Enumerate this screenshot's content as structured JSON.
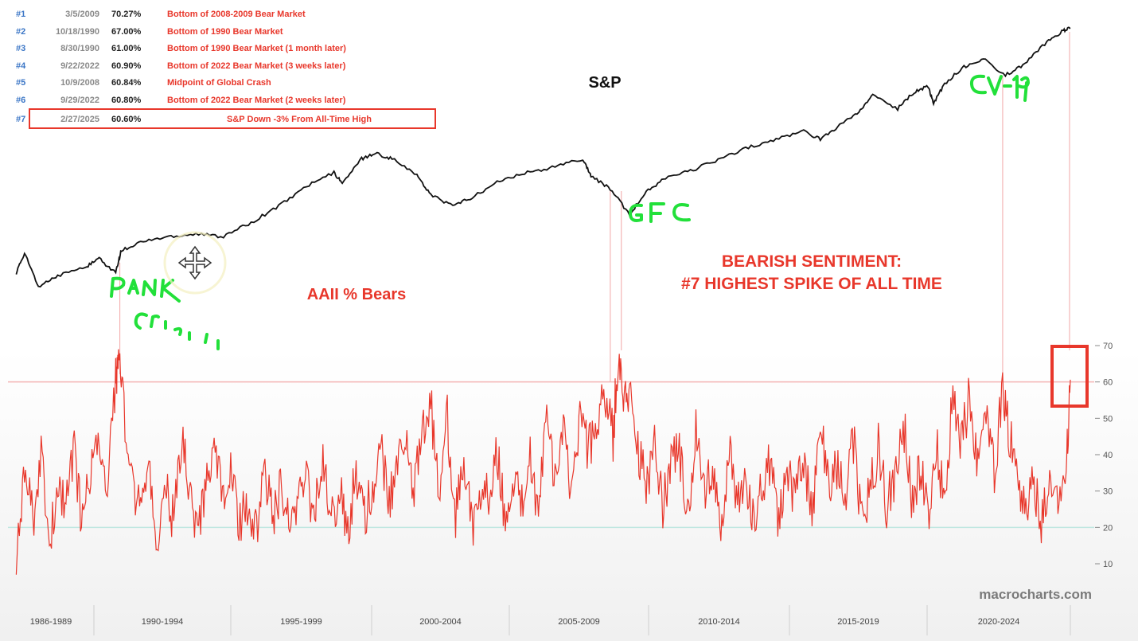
{
  "chart_data": [
    {
      "type": "line",
      "title": "S&P",
      "annotations": [
        "Bank Crisis",
        "GFC",
        "CV-19"
      ],
      "series": [
        {
          "name": "S&P",
          "x": [
            1987.0,
            1987.3,
            1987.8,
            1988.5,
            1989.5,
            1990.0,
            1990.6,
            1990.8,
            1991.5,
            1992.5,
            1993.5,
            1994.5,
            1995.5,
            1996.5,
            1997.5,
            1998.5,
            1998.8,
            1999.5,
            2000.0,
            2000.6,
            2001.5,
            2002.0,
            2002.8,
            2003.5,
            2004.5,
            2005.5,
            2006.5,
            2007.5,
            2007.8,
            2008.5,
            2009.2,
            2009.8,
            2010.5,
            2011.5,
            2012.5,
            2013.5,
            2014.5,
            2015.5,
            2016.1,
            2016.8,
            2017.5,
            2018.0,
            2018.9,
            2019.5,
            2020.0,
            2020.2,
            2020.6,
            2021.3,
            2022.0,
            2022.8,
            2023.5,
            2024.3,
            2024.9,
            2025.15
          ],
          "values_norm": [
            0.45,
            0.52,
            0.4,
            0.44,
            0.47,
            0.5,
            0.45,
            0.53,
            0.56,
            0.58,
            0.59,
            0.58,
            0.63,
            0.69,
            0.76,
            0.81,
            0.77,
            0.86,
            0.88,
            0.86,
            0.8,
            0.73,
            0.69,
            0.72,
            0.78,
            0.81,
            0.83,
            0.86,
            0.8,
            0.75,
            0.66,
            0.74,
            0.79,
            0.82,
            0.86,
            0.9,
            0.93,
            0.96,
            0.93,
            0.98,
            1.03,
            1.09,
            1.04,
            1.1,
            1.12,
            1.06,
            1.13,
            1.19,
            1.22,
            1.16,
            1.2,
            1.28,
            1.32,
            1.33
          ]
        }
      ]
    },
    {
      "type": "line",
      "title": "AAII % Bears",
      "ylim": [
        5,
        72
      ],
      "yticks": [
        "10",
        "20",
        "30",
        "40",
        "50",
        "60",
        "70"
      ],
      "reference_lines": [
        20,
        60
      ],
      "xtick_labels": [
        "1986-1989",
        "1990-1994",
        "1995-1999",
        "2000-2004",
        "2005-2009",
        "2010-2014",
        "2015-2019",
        "2020-2024"
      ],
      "series": [
        {
          "name": "AAII % Bears",
          "x": [
            1987.0,
            1987.3,
            1987.6,
            1987.9,
            1988.2,
            1988.5,
            1988.8,
            1989.1,
            1989.4,
            1989.7,
            1990.0,
            1990.3,
            1990.6,
            1990.7,
            1990.9,
            1991.2,
            1991.5,
            1991.8,
            1992.1,
            1992.4,
            1992.7,
            1993.0,
            1993.3,
            1993.6,
            1993.9,
            1994.2,
            1994.5,
            1994.8,
            1995.1,
            1995.4,
            1995.7,
            1996.0,
            1996.3,
            1996.6,
            1996.9,
            1997.2,
            1997.5,
            1997.8,
            1998.1,
            1998.4,
            1998.7,
            1999.0,
            1999.3,
            1999.6,
            1999.9,
            2000.2,
            2000.5,
            2000.8,
            2001.1,
            2001.4,
            2001.7,
            2002.0,
            2002.3,
            2002.6,
            2002.9,
            2003.2,
            2003.5,
            2003.8,
            2004.1,
            2004.4,
            2004.7,
            2005.0,
            2005.3,
            2005.6,
            2005.9,
            2006.2,
            2006.5,
            2006.8,
            2007.1,
            2007.4,
            2007.7,
            2008.0,
            2008.3,
            2008.6,
            2008.8,
            2009.0,
            2009.2,
            2009.5,
            2009.8,
            2010.1,
            2010.4,
            2010.7,
            2011.0,
            2011.3,
            2011.6,
            2011.9,
            2012.2,
            2012.5,
            2012.8,
            2013.1,
            2013.4,
            2013.7,
            2014.0,
            2014.3,
            2014.6,
            2014.9,
            2015.2,
            2015.5,
            2015.8,
            2016.1,
            2016.4,
            2016.7,
            2017.0,
            2017.3,
            2017.6,
            2017.9,
            2018.2,
            2018.5,
            2018.8,
            2019.1,
            2019.4,
            2019.7,
            2020.0,
            2020.3,
            2020.6,
            2020.9,
            2021.2,
            2021.5,
            2021.8,
            2022.1,
            2022.4,
            2022.7,
            2022.9,
            2023.2,
            2023.5,
            2023.8,
            2024.1,
            2024.4,
            2024.7,
            2025.0,
            2025.15
          ],
          "values": [
            12,
            35,
            22,
            40,
            18,
            30,
            25,
            42,
            20,
            38,
            45,
            30,
            60,
            67,
            52,
            33,
            25,
            40,
            18,
            30,
            22,
            44,
            28,
            20,
            35,
            42,
            26,
            36,
            20,
            28,
            18,
            35,
            24,
            30,
            20,
            26,
            32,
            24,
            40,
            22,
            30,
            20,
            35,
            24,
            30,
            42,
            26,
            38,
            48,
            30,
            45,
            55,
            28,
            50,
            22,
            40,
            18,
            26,
            30,
            42,
            20,
            35,
            28,
            40,
            24,
            50,
            32,
            46,
            30,
            52,
            40,
            50,
            56,
            45,
            70,
            52,
            58,
            42,
            30,
            45,
            26,
            38,
            40,
            24,
            48,
            30,
            36,
            22,
            40,
            26,
            34,
            22,
            30,
            38,
            22,
            34,
            28,
            40,
            22,
            48,
            30,
            36,
            28,
            44,
            22,
            30,
            42,
            26,
            34,
            50,
            28,
            36,
            24,
            42,
            28,
            58,
            44,
            56,
            38,
            52,
            34,
            60,
            48,
            36,
            26,
            32,
            22,
            30,
            24,
            38,
            60.6
          ]
        }
      ]
    }
  ],
  "rankings": [
    {
      "rank": "#1",
      "date": "3/5/2009",
      "value": "70.27%",
      "desc": "Bottom of 2008-2009 Bear Market"
    },
    {
      "rank": "#2",
      "date": "10/18/1990",
      "value": "67.00%",
      "desc": "Bottom of 1990 Bear Market"
    },
    {
      "rank": "#3",
      "date": "8/30/1990",
      "value": "61.00%",
      "desc": "Bottom of 1990 Bear Market (1 month later)"
    },
    {
      "rank": "#4",
      "date": "9/22/2022",
      "value": "60.90%",
      "desc": "Bottom of 2022 Bear Market (3 weeks later)"
    },
    {
      "rank": "#5",
      "date": "10/9/2008",
      "value": "60.84%",
      "desc": "Midpoint of Global Crash"
    },
    {
      "rank": "#6",
      "date": "9/29/2022",
      "value": "60.80%",
      "desc": "Bottom of 2022 Bear Market (2 weeks later)"
    },
    {
      "rank": "#7",
      "date": "2/27/2025",
      "value": "60.60%",
      "desc": "S&P Down -3% From All-Time High"
    }
  ],
  "headline": {
    "line1": "BEARISH SENTIMENT:",
    "line2": "#7 HIGHEST SPIKE OF ALL TIME"
  },
  "watermark": "macrocharts.com",
  "colors": {
    "sp_line": "#111111",
    "bears_line": "#e8372b",
    "highlight": "#e8372b",
    "annotation": "#22e03a",
    "rank_number": "#3b76c6",
    "ref_line": "#f4b3b3",
    "ref_line_low": "#bfe7e0"
  }
}
